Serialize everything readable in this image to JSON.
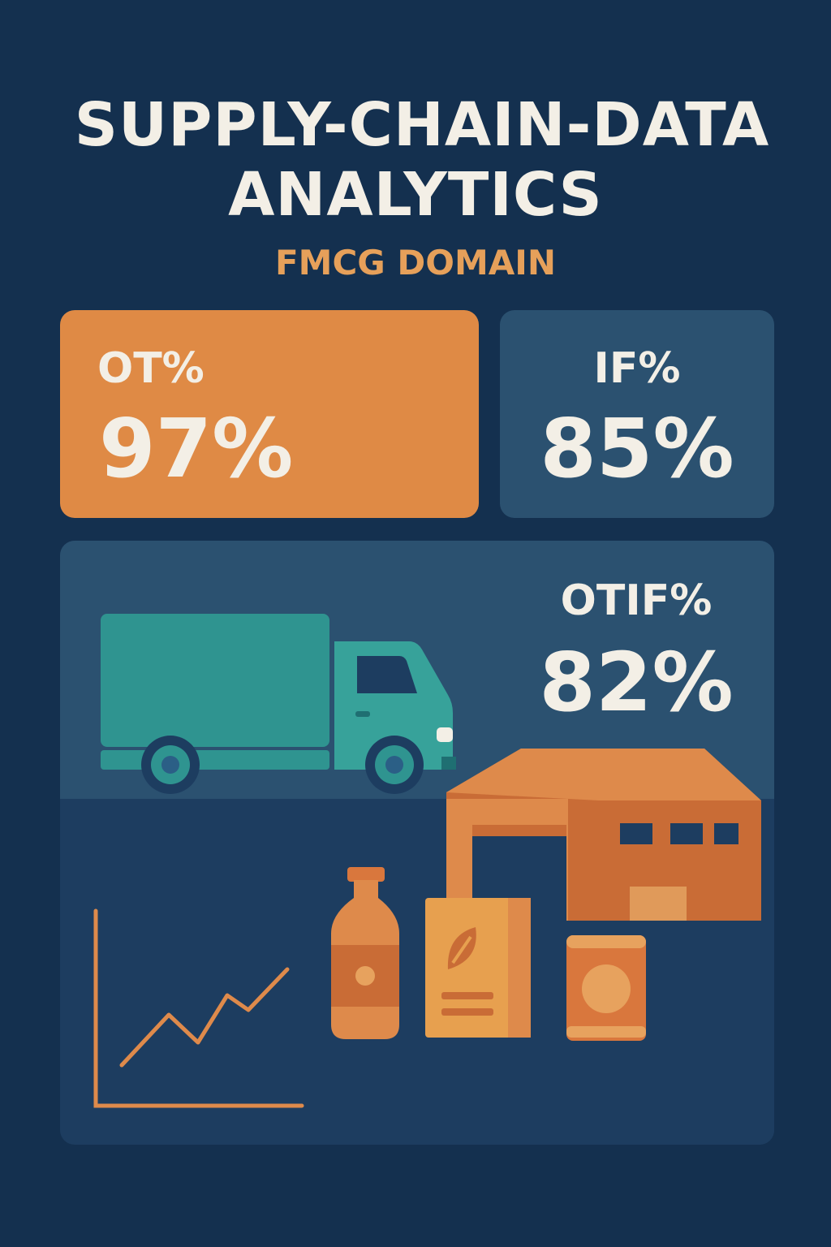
{
  "header": {
    "title_line1": "SUPPLY-CHAIN-DATA",
    "title_line2": "ANALYTICS",
    "subtitle": "FMCG DOMAIN"
  },
  "metrics": {
    "ot": {
      "label": "OT%",
      "value": "97%"
    },
    "if": {
      "label": "IF%",
      "value": "85%"
    },
    "otif": {
      "label": "OTIF%",
      "value": "82%"
    }
  },
  "illustration": {
    "icons": [
      "truck-icon",
      "warehouse-icon",
      "bottle-icon",
      "cereal-box-icon",
      "can-icon",
      "trend-chart-icon"
    ]
  },
  "colors": {
    "background": "#14304f",
    "accent_orange": "#df8a45",
    "panel_blue": "#2b5170",
    "teal": "#2f9490",
    "text_light": "#f3efe6",
    "subtitle_orange": "#e6a05a"
  }
}
